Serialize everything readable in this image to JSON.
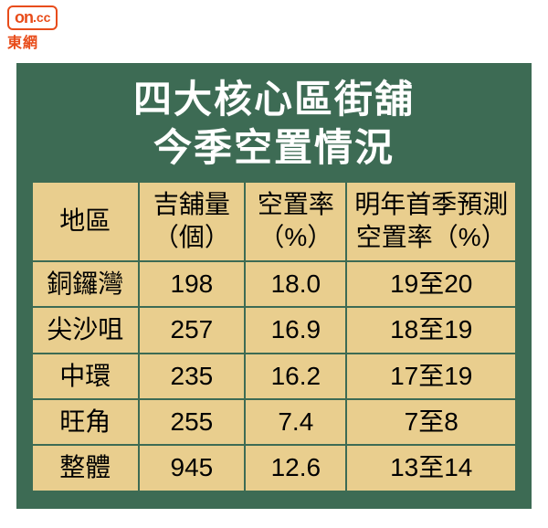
{
  "logo": {
    "on": "on",
    "cc": ".cc",
    "sub": "東網"
  },
  "title_line1": "四大核心區街舖",
  "title_line2": "今季空置情況",
  "colors": {
    "panel_bg": "#3d6b54",
    "table_bg": "#e9ce8e",
    "border": "#3d6b54",
    "title_color": "#ffffff",
    "cell_color": "#000000",
    "logo_color": "#e84c1a"
  },
  "table": {
    "headers": [
      {
        "line1": "地區",
        "line2": ""
      },
      {
        "line1": "吉舖量",
        "line2": "（個）"
      },
      {
        "line1": "空置率",
        "line2": "（%）"
      },
      {
        "line1": "明年首季預測",
        "line2": "空置率（%）"
      }
    ],
    "rows": [
      {
        "c0": "銅鑼灣",
        "c1": "198",
        "c2": "18.0",
        "c3": "19至20"
      },
      {
        "c0": "尖沙咀",
        "c1": "257",
        "c2": "16.9",
        "c3": "18至19"
      },
      {
        "c0": "中環",
        "c1": "235",
        "c2": "16.2",
        "c3": "17至19"
      },
      {
        "c0": "旺角",
        "c1": "255",
        "c2": "7.4",
        "c3": "7至8"
      },
      {
        "c0": "整體",
        "c1": "945",
        "c2": "12.6",
        "c3": "13至14"
      }
    ],
    "col_widths_pct": [
      22,
      22,
      21,
      35
    ],
    "font_size_pt": 28,
    "header_font_size_pt": 28
  },
  "title_fontsize": 42
}
